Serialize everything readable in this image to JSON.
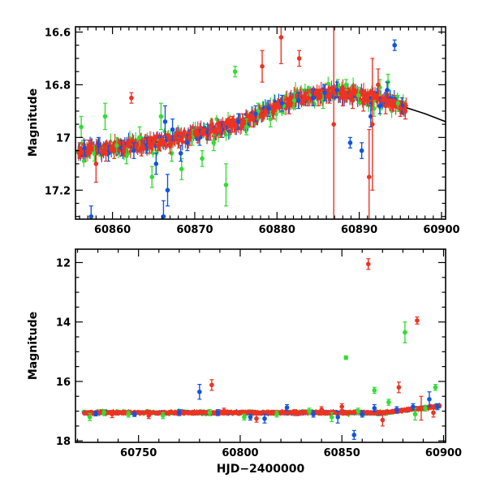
{
  "colors": {
    "green": "#33dd33",
    "blue": "#1155dd",
    "red": "#ee3322",
    "model": "#000000"
  },
  "chart_data": [
    {
      "type": "scatter",
      "panel": "top",
      "xlabel": "",
      "ylabel": "Magnitude",
      "xlim": [
        60855.5,
        60900.5
      ],
      "ylim": [
        17.31,
        16.58
      ],
      "y_inverted": true,
      "xticks": [
        60860,
        60870,
        60880,
        60890,
        60900
      ],
      "xtick_labels": [
        "60860",
        "60870",
        "60880",
        "60890",
        "60900"
      ],
      "yticks": [
        16.6,
        16.8,
        17.0,
        17.2
      ],
      "ytick_labels": [
        "16.6",
        "16.8",
        "17",
        "17.2"
      ],
      "model_curve": {
        "x": [
          60855.5,
          60860,
          60865,
          60870,
          60875,
          60878,
          60880,
          60882,
          60884,
          60886,
          60888,
          60890,
          60892,
          60894,
          60896,
          60898,
          60900.5
        ],
        "y": [
          17.05,
          17.04,
          17.02,
          16.99,
          16.95,
          16.91,
          16.88,
          16.86,
          16.84,
          16.83,
          16.83,
          16.84,
          16.85,
          16.87,
          16.89,
          16.91,
          16.94
        ]
      },
      "series": [
        {
          "color_key": "green",
          "points": [
            [
              60856.2,
              16.96,
              0.04
            ],
            [
              60857.8,
              17.06,
              0.03
            ],
            [
              60859.1,
              16.92,
              0.05
            ],
            [
              60860.5,
              17.03,
              0.03
            ],
            [
              60861.7,
              17.07,
              0.03
            ],
            [
              60863.3,
              17.0,
              0.04
            ],
            [
              60864.8,
              17.15,
              0.04
            ],
            [
              60865.9,
              16.92,
              0.05
            ],
            [
              60867.2,
              17.06,
              0.03
            ],
            [
              60868.4,
              17.12,
              0.04
            ],
            [
              60869.7,
              17.0,
              0.03
            ],
            [
              60870.9,
              17.08,
              0.03
            ],
            [
              60872.3,
              17.02,
              0.03
            ],
            [
              60873.8,
              17.18,
              0.08
            ],
            [
              60874.9,
              16.75,
              0.02
            ],
            [
              60876.3,
              16.96,
              0.03
            ],
            [
              60877.7,
              16.9,
              0.03
            ],
            [
              60879.2,
              16.93,
              0.03
            ],
            [
              60880.8,
              16.88,
              0.03
            ],
            [
              60882.1,
              16.86,
              0.03
            ],
            [
              60883.9,
              16.84,
              0.03
            ],
            [
              60885.6,
              16.86,
              0.03
            ],
            [
              60887.4,
              16.81,
              0.03
            ],
            [
              60888.4,
              16.8,
              0.02
            ],
            [
              60889.9,
              16.84,
              0.03
            ],
            [
              60891.8,
              16.89,
              0.03
            ],
            [
              60892.5,
              16.81,
              0.03
            ],
            [
              60893.5,
              16.79,
              0.03
            ],
            [
              60894.7,
              16.87,
              0.03
            ]
          ]
        },
        {
          "color_key": "blue",
          "points": [
            [
              60856.6,
              17.04,
              0.03
            ],
            [
              60857.4,
              17.3,
              0.04
            ],
            [
              60858.3,
              17.03,
              0.03
            ],
            [
              60859.5,
              17.06,
              0.03
            ],
            [
              60861.1,
              17.04,
              0.03
            ],
            [
              60862.6,
              17.05,
              0.03
            ],
            [
              60864.2,
              17.03,
              0.03
            ],
            [
              60865.3,
              17.1,
              0.04
            ],
            [
              60866.2,
              17.3,
              0.06
            ],
            [
              60866.4,
              16.94,
              0.06
            ],
            [
              60866.7,
              17.2,
              0.06
            ],
            [
              60867.3,
              16.97,
              0.04
            ],
            [
              60868.3,
              17.06,
              0.03
            ],
            [
              60869.1,
              17.02,
              0.03
            ],
            [
              60870.6,
              17.0,
              0.03
            ],
            [
              60871.6,
              16.98,
              0.03
            ],
            [
              60873.3,
              16.97,
              0.03
            ],
            [
              60875.3,
              16.94,
              0.03
            ],
            [
              60877.4,
              16.91,
              0.03
            ],
            [
              60879.0,
              16.89,
              0.03
            ],
            [
              60880.6,
              16.87,
              0.03
            ],
            [
              60882.6,
              16.86,
              0.03
            ],
            [
              60884.4,
              16.85,
              0.03
            ],
            [
              60885.8,
              16.83,
              0.03
            ],
            [
              60887.3,
              16.82,
              0.03
            ],
            [
              60888.9,
              17.02,
              0.02
            ],
            [
              60890.3,
              17.05,
              0.03
            ],
            [
              60891.4,
              16.92,
              0.04
            ],
            [
              60892.5,
              16.88,
              0.03
            ],
            [
              60893.4,
              16.82,
              0.03
            ],
            [
              60894.3,
              16.65,
              0.02
            ],
            [
              60895.2,
              16.88,
              0.03
            ]
          ]
        },
        {
          "color_key": "red",
          "points": [
            [
              60856.0,
              17.05,
              0.03
            ],
            [
              60857.1,
              17.04,
              0.03
            ],
            [
              60858.0,
              17.1,
              0.07
            ],
            [
              60859.2,
              17.06,
              0.03
            ],
            [
              60860.2,
              17.05,
              0.03
            ],
            [
              60861.4,
              17.04,
              0.03
            ],
            [
              60862.3,
              16.85,
              0.02
            ],
            [
              60863.5,
              17.04,
              0.03
            ],
            [
              60864.5,
              17.03,
              0.03
            ],
            [
              60865.7,
              17.02,
              0.03
            ],
            [
              60867.0,
              17.03,
              0.03
            ],
            [
              60868.1,
              17.01,
              0.03
            ],
            [
              60869.4,
              17.0,
              0.03
            ],
            [
              60870.4,
              16.99,
              0.03
            ],
            [
              60871.9,
              16.98,
              0.03
            ],
            [
              60873.1,
              16.97,
              0.03
            ],
            [
              60874.6,
              16.95,
              0.03
            ],
            [
              60875.8,
              16.94,
              0.03
            ],
            [
              60877.1,
              16.93,
              0.03
            ],
            [
              60878.2,
              16.73,
              0.06
            ],
            [
              60879.6,
              16.9,
              0.03
            ],
            [
              60880.5,
              16.62,
              0.1
            ],
            [
              60881.5,
              16.88,
              0.03
            ],
            [
              60882.7,
              16.7,
              0.03
            ],
            [
              60883.8,
              16.85,
              0.03
            ],
            [
              60885.0,
              16.85,
              0.03
            ],
            [
              60886.4,
              16.84,
              0.03
            ],
            [
              60886.9,
              16.95,
              0.5
            ],
            [
              60888.0,
              16.85,
              0.03
            ],
            [
              60889.2,
              16.86,
              0.03
            ],
            [
              60890.5,
              16.87,
              0.03
            ],
            [
              60891.2,
              17.15,
              0.18
            ],
            [
              60891.6,
              16.95,
              0.25
            ],
            [
              60892.3,
              16.8,
              0.06
            ],
            [
              60893.2,
              16.88,
              0.03
            ],
            [
              60894.2,
              16.87,
              0.03
            ],
            [
              60895.0,
              16.89,
              0.03
            ],
            [
              60895.6,
              16.9,
              0.03
            ]
          ]
        }
      ]
    },
    {
      "type": "scatter",
      "panel": "bottom",
      "xlabel": "HJD−2400000",
      "ylabel": "Magnitude",
      "xlim": [
        60719,
        60901
      ],
      "ylim": [
        18.05,
        11.55
      ],
      "y_inverted": true,
      "xticks": [
        60750,
        60800,
        60850,
        60900
      ],
      "xtick_labels": [
        "60750",
        "60800",
        "60850",
        "60900"
      ],
      "yticks": [
        12,
        14,
        16,
        18
      ],
      "ytick_labels": [
        "12",
        "14",
        "16",
        "18"
      ],
      "series": [
        {
          "color_key": "green",
          "points": [
            [
              60726,
              17.2,
              0.12
            ],
            [
              60733,
              17.05,
              0.1
            ],
            [
              60745,
              17.1,
              0.1
            ],
            [
              60762,
              17.15,
              0.1
            ],
            [
              60785,
              17.05,
              0.1
            ],
            [
              60802,
              17.2,
              0.1
            ],
            [
              60818,
              17.1,
              0.1
            ],
            [
              60834,
              17.0,
              0.1
            ],
            [
              60845,
              17.2,
              0.15
            ],
            [
              60852,
              15.2,
              0.06
            ],
            [
              60858,
              17.0,
              0.1
            ],
            [
              60866,
              16.3,
              0.1
            ],
            [
              60873,
              16.7,
              0.1
            ],
            [
              60881,
              14.35,
              0.35
            ],
            [
              60886,
              17.1,
              0.2
            ],
            [
              60891,
              16.9,
              0.1
            ],
            [
              60896,
              16.2,
              0.1
            ]
          ]
        },
        {
          "color_key": "blue",
          "points": [
            [
              60729,
              17.08,
              0.08
            ],
            [
              60748,
              17.1,
              0.08
            ],
            [
              60770,
              17.05,
              0.1
            ],
            [
              60780,
              16.35,
              0.25
            ],
            [
              60789,
              17.05,
              0.1
            ],
            [
              60805,
              17.2,
              0.1
            ],
            [
              60812,
              17.25,
              0.15
            ],
            [
              60823,
              16.88,
              0.1
            ],
            [
              60836,
              17.1,
              0.1
            ],
            [
              60848,
              17.2,
              0.2
            ],
            [
              60856,
              17.8,
              0.15
            ],
            [
              60860,
              17.1,
              0.1
            ],
            [
              60866,
              16.9,
              0.12
            ],
            [
              60877,
              16.95,
              0.1
            ],
            [
              60885,
              16.85,
              0.1
            ],
            [
              60893,
              16.6,
              0.25
            ],
            [
              60897,
              16.85,
              0.1
            ]
          ]
        },
        {
          "color_key": "red",
          "points": [
            [
              60737,
              17.1,
              0.12
            ],
            [
              60755,
              17.15,
              0.1
            ],
            [
              60786,
              16.12,
              0.18
            ],
            [
              60792,
              17.0,
              0.1
            ],
            [
              60808,
              17.25,
              0.12
            ],
            [
              60827,
              17.05,
              0.1
            ],
            [
              60840,
              16.95,
              0.1
            ],
            [
              60850,
              16.85,
              0.1
            ],
            [
              60863,
              12.05,
              0.18
            ],
            [
              60870,
              17.3,
              0.2
            ],
            [
              60878,
              16.2,
              0.18
            ],
            [
              60887,
              13.95,
              0.12
            ],
            [
              60889,
              16.9,
              0.4
            ],
            [
              60895,
              17.05,
              0.15
            ]
          ]
        }
      ]
    }
  ]
}
